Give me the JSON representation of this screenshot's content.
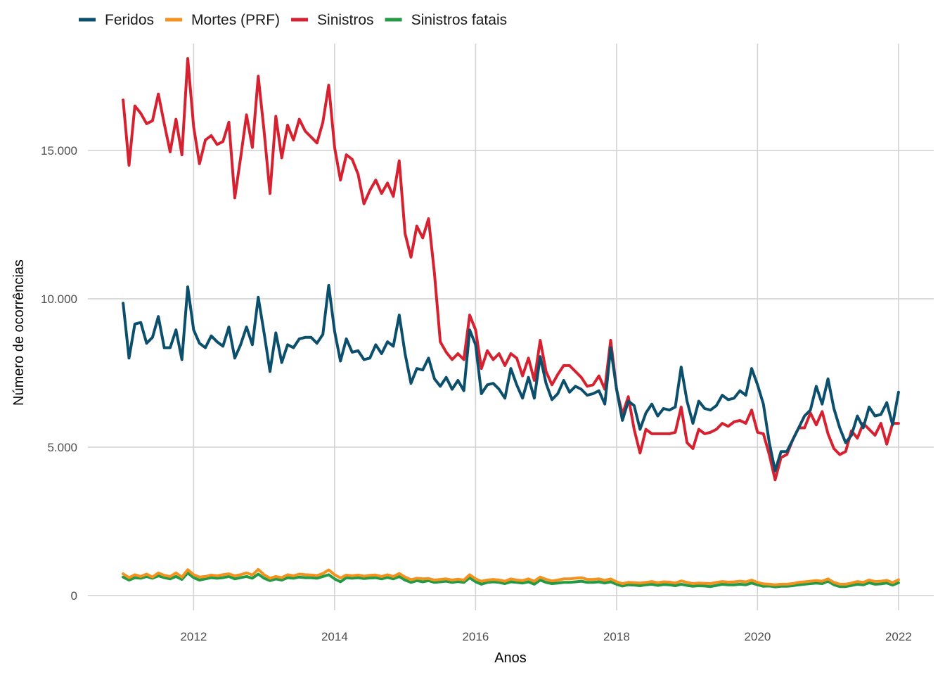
{
  "chart_data": {
    "type": "line",
    "xlabel": "Anos",
    "ylabel": "Número de ocorrências",
    "xlim": [
      2010.5,
      2022.5
    ],
    "ylim": [
      -500,
      18600
    ],
    "x_ticks": [
      2012,
      2014,
      2016,
      2018,
      2020,
      2022
    ],
    "y_ticks": [
      0,
      5000,
      10000,
      15000
    ],
    "y_tick_labels": [
      "0",
      "5.000",
      "10.000",
      "15.000"
    ],
    "grid": true,
    "legend_position": "top-left",
    "x_start": 2011.0,
    "x_step": 0.0833333,
    "series": [
      {
        "name": "Feridos",
        "color": "#0b4f6c",
        "values": [
          9850,
          8000,
          9150,
          9200,
          8500,
          8700,
          9400,
          8350,
          8350,
          8950,
          7950,
          10400,
          8950,
          8500,
          8350,
          8750,
          8550,
          8400,
          9050,
          8000,
          8450,
          9050,
          8450,
          10050,
          8850,
          7550,
          8850,
          7850,
          8450,
          8350,
          8650,
          8700,
          8700,
          8500,
          8800,
          10450,
          8900,
          7900,
          8650,
          8200,
          8250,
          7950,
          8000,
          8450,
          8150,
          8550,
          8400,
          9450,
          8150,
          7150,
          7650,
          7600,
          8000,
          7300,
          7050,
          7350,
          6950,
          7250,
          6900,
          8950,
          8450,
          6800,
          7100,
          7150,
          6950,
          6650,
          7650,
          7100,
          6650,
          7350,
          6650,
          8050,
          7150,
          6600,
          6800,
          7250,
          6850,
          7050,
          6950,
          6750,
          6800,
          6900,
          6450,
          8350,
          6950,
          5900,
          6550,
          6400,
          5600,
          6150,
          6450,
          6050,
          6300,
          6250,
          6350,
          7700,
          6550,
          5800,
          6550,
          6300,
          6250,
          6400,
          6750,
          6600,
          6650,
          6900,
          6750,
          7650,
          7100,
          6450,
          5150,
          4200,
          4850,
          4850,
          5250,
          5650,
          6050,
          6250,
          7050,
          6450,
          7300,
          6300,
          5650,
          5150,
          5400,
          6050,
          5650,
          6350,
          6050,
          6100,
          6500,
          5750,
          6850
        ]
      },
      {
        "name": "Mortes (PRF)",
        "color": "#f4921e",
        "values": [
          730,
          600,
          700,
          640,
          720,
          620,
          760,
          680,
          640,
          760,
          620,
          870,
          700,
          620,
          640,
          690,
          660,
          700,
          730,
          660,
          700,
          760,
          690,
          880,
          700,
          580,
          640,
          600,
          700,
          660,
          720,
          700,
          690,
          670,
          740,
          860,
          700,
          590,
          690,
          660,
          690,
          650,
          680,
          690,
          640,
          700,
          640,
          740,
          620,
          530,
          580,
          560,
          570,
          520,
          540,
          560,
          520,
          550,
          520,
          700,
          560,
          480,
          520,
          540,
          520,
          480,
          560,
          520,
          500,
          560,
          480,
          620,
          540,
          490,
          520,
          560,
          560,
          580,
          600,
          540,
          540,
          560,
          510,
          560,
          460,
          400,
          440,
          430,
          420,
          440,
          470,
          430,
          460,
          450,
          420,
          490,
          440,
          400,
          420,
          410,
          400,
          440,
          470,
          450,
          460,
          480,
          460,
          520,
          440,
          390,
          380,
          360,
          380,
          380,
          400,
          440,
          460,
          480,
          500,
          480,
          560,
          440,
          380,
          380,
          420,
          470,
          440,
          520,
          470,
          480,
          510,
          430,
          530
        ]
      },
      {
        "name": "Sinistros",
        "color": "#d62130",
        "values": [
          16700,
          14500,
          16500,
          16250,
          15900,
          16000,
          16900,
          15900,
          14950,
          16050,
          14850,
          18100,
          15800,
          14550,
          15350,
          15500,
          15200,
          15300,
          15950,
          13400,
          14750,
          16200,
          15100,
          17500,
          15650,
          13550,
          16150,
          14750,
          15850,
          15350,
          16050,
          15650,
          15450,
          15250,
          15950,
          17200,
          15100,
          14000,
          14850,
          14700,
          14200,
          13200,
          13650,
          14000,
          13550,
          13900,
          13450,
          14650,
          12200,
          11400,
          12450,
          12050,
          12700,
          10850,
          8550,
          8200,
          7950,
          8150,
          7950,
          9450,
          8950,
          7650,
          8250,
          7950,
          8150,
          7750,
          8150,
          8000,
          7400,
          8000,
          7250,
          8600,
          7550,
          7100,
          7450,
          7750,
          7750,
          7550,
          7350,
          7050,
          7100,
          7400,
          6950,
          8600,
          6950,
          6100,
          6700,
          5600,
          4800,
          5600,
          5450,
          5450,
          5450,
          5450,
          5500,
          6350,
          5150,
          4950,
          5600,
          5450,
          5500,
          5600,
          5800,
          5700,
          5850,
          5900,
          5800,
          6250,
          5500,
          5450,
          4750,
          3900,
          4650,
          4750,
          5250,
          5650,
          5650,
          6150,
          5750,
          6200,
          5450,
          4950,
          4750,
          4850,
          5550,
          5300,
          5800,
          5600,
          5400,
          5800,
          5100,
          5800,
          5800
        ]
      },
      {
        "name": "Sinistros fatais",
        "color": "#239b46",
        "values": [
          620,
          520,
          600,
          580,
          640,
          580,
          660,
          600,
          560,
          640,
          540,
          760,
          600,
          520,
          560,
          600,
          580,
          600,
          640,
          560,
          600,
          640,
          580,
          720,
          580,
          500,
          560,
          520,
          600,
          580,
          620,
          600,
          600,
          580,
          640,
          700,
          560,
          460,
          600,
          580,
          600,
          570,
          590,
          600,
          560,
          610,
          560,
          640,
          520,
          440,
          500,
          460,
          500,
          440,
          460,
          480,
          440,
          470,
          440,
          600,
          460,
          380,
          440,
          460,
          440,
          400,
          460,
          440,
          420,
          460,
          380,
          520,
          440,
          400,
          420,
          440,
          440,
          460,
          480,
          440,
          440,
          460,
          420,
          460,
          380,
          320,
          360,
          350,
          330,
          360,
          380,
          340,
          370,
          360,
          330,
          380,
          340,
          310,
          330,
          320,
          300,
          340,
          380,
          360,
          360,
          380,
          360,
          420,
          360,
          310,
          320,
          290,
          310,
          310,
          330,
          360,
          380,
          400,
          420,
          400,
          480,
          360,
          300,
          300,
          340,
          380,
          360,
          430,
          380,
          390,
          420,
          350,
          430
        ]
      }
    ]
  }
}
